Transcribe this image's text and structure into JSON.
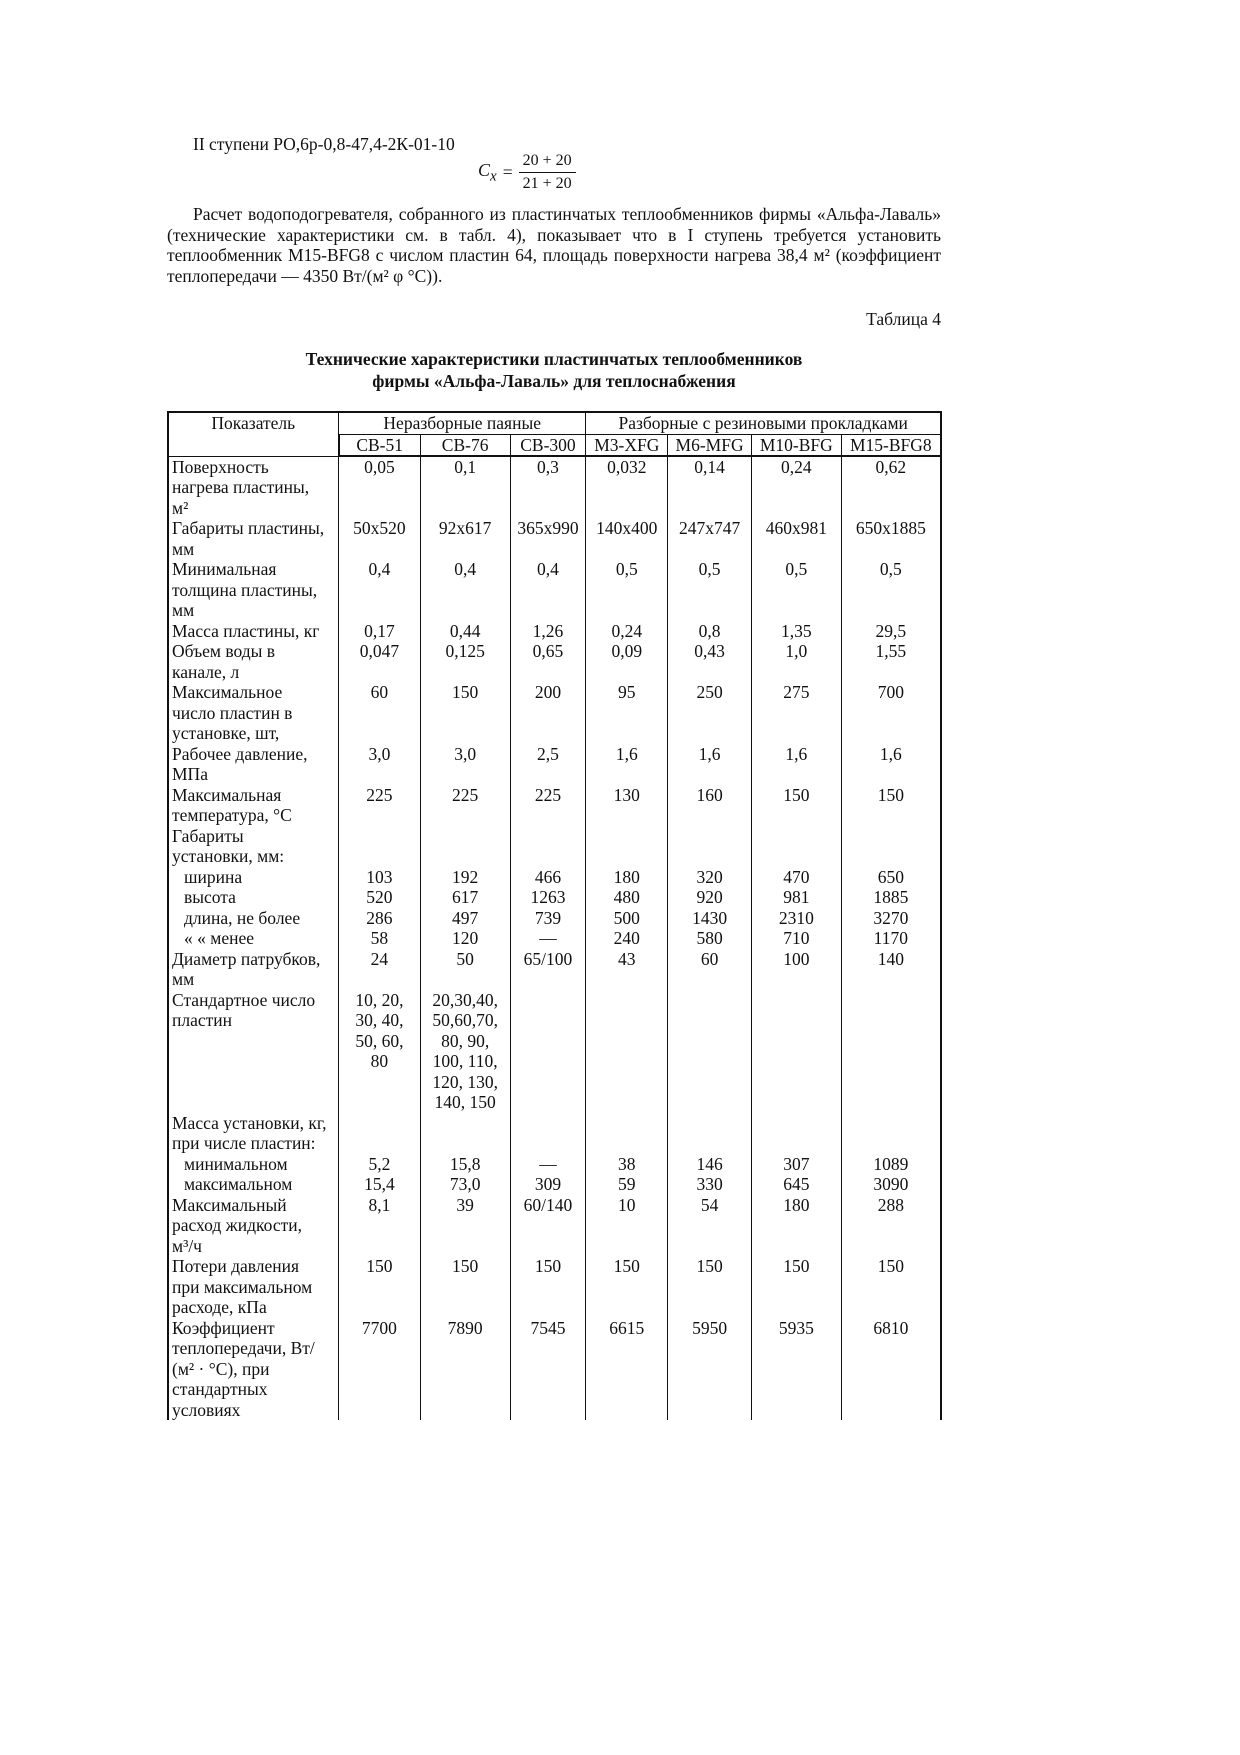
{
  "text": {
    "line1": "II ступени РО,6р-0,8-47,4-2К-01-10",
    "formula": {
      "lhs": "C",
      "lhs_sub": "x",
      "eq": "=",
      "numerator": "20 + 20",
      "denominator": "21 + 20"
    },
    "paragraph": "Расчет водоподогревателя, собранного из пластинчатых теплообменников фирмы «Альфа-Лаваль» (технические характеристики см. в табл. 4), показывает что в I ступень требуется установить теплообменник М15-BFG8 с числом пластин 64, площадь поверхности нагрева 38,4 м² (коэффициент теплопередачи — 4350 Вт/(м² φ °С)).",
    "table_number": "Таблица 4",
    "table_title_1": "Технические характеристики пластинчатых теплообменников",
    "table_title_2": "фирмы «Альфа-Лаваль» для теплоснабжения"
  },
  "table": {
    "header_indicator": "Показатель",
    "group1": "Неразборные паяные",
    "group2": "Разборные с резиновыми прокладками",
    "columns": [
      "CB-51",
      "CB-76",
      "CB-300",
      "M3-XFG",
      "M6-MFG",
      "M10-BFG",
      "M15-BFG8"
    ],
    "rows": [
      {
        "label": "Поверхность\nнагрева пластины,\nм²",
        "values": [
          "0,05",
          "0,1",
          "0,3",
          "0,032",
          "0,14",
          "0,24",
          "0,62"
        ]
      },
      {
        "label": "Габариты пластины,\nмм",
        "values": [
          "50x520",
          "92x617",
          "365x990",
          "140x400",
          "247x747",
          "460x981",
          "650x1885"
        ]
      },
      {
        "label": "Минимальная\nтолщина пластины,\nмм",
        "values": [
          "0,4",
          "0,4",
          "0,4",
          "0,5",
          "0,5",
          "0,5",
          "0,5"
        ]
      },
      {
        "label": "Масса пластины, кг",
        "values": [
          "0,17",
          "0,44",
          "1,26",
          "0,24",
          "0,8",
          "1,35",
          "29,5"
        ]
      },
      {
        "label": "Объем воды в\nканале, л",
        "values": [
          "0,047",
          "0,125",
          "0,65",
          "0,09",
          "0,43",
          "1,0",
          "1,55"
        ]
      },
      {
        "label": "Максимальное\nчисло пластин в\nустановке, шт,",
        "values": [
          "60",
          "150",
          "200",
          "95",
          "250",
          "275",
          "700"
        ]
      },
      {
        "label": "Рабочее давление,\nМПа",
        "values": [
          "3,0",
          "3,0",
          "2,5",
          "1,6",
          "1,6",
          "1,6",
          "1,6"
        ]
      },
      {
        "label": "Максимальная\nтемпература, °С",
        "values": [
          "225",
          "225",
          "225",
          "130",
          "160",
          "150",
          "150"
        ]
      },
      {
        "label": "Габариты\nустановки, мм:",
        "values": [
          "",
          "",
          "",
          "",
          "",
          "",
          ""
        ]
      },
      {
        "label": "ширина",
        "sub": true,
        "values": [
          "103",
          "192",
          "466",
          "180",
          "320",
          "470",
          "650"
        ]
      },
      {
        "label": "высота",
        "sub": true,
        "values": [
          "520",
          "617",
          "1263",
          "480",
          "920",
          "981",
          "1885"
        ]
      },
      {
        "label": "длина, не более",
        "sub": true,
        "values": [
          "286",
          "497",
          "739",
          "500",
          "1430",
          "2310",
          "3270"
        ]
      },
      {
        "label": " «        «  менее",
        "sub": true,
        "values": [
          "58",
          "120",
          "—",
          "240",
          "580",
          "710",
          "1170"
        ]
      },
      {
        "label": "Диаметр патрубков,\nмм",
        "values": [
          "24",
          "50",
          "65/100",
          "43",
          "60",
          "100",
          "140"
        ]
      },
      {
        "label": "Стандартное число\nпластин",
        "values": [
          "10, 20,\n30, 40,\n50, 60,\n80",
          "20,30,40,\n50,60,70,\n80, 90,\n100, 110,\n120, 130,\n140, 150",
          "",
          "",
          "",
          "",
          ""
        ]
      },
      {
        "label": "Масса установки, кг,\nпри числе пластин:",
        "values": [
          "",
          "",
          "",
          "",
          "",
          "",
          ""
        ]
      },
      {
        "label": "минимальном",
        "sub": true,
        "values": [
          "5,2",
          "15,8",
          "—",
          "38",
          "146",
          "307",
          "1089"
        ]
      },
      {
        "label": "максимальном",
        "sub": true,
        "values": [
          "15,4",
          "73,0",
          "309",
          "59",
          "330",
          "645",
          "3090"
        ]
      },
      {
        "label": "Максимальный\nрасход жидкости,\nм³/ч",
        "values": [
          "8,1",
          "39",
          "60/140",
          "10",
          "54",
          "180",
          "288"
        ]
      },
      {
        "label": "Потери давления\nпри максимальном\nрасходе, кПа",
        "values": [
          "150",
          "150",
          "150",
          "150",
          "150",
          "150",
          "150"
        ]
      },
      {
        "label": "Коэффициент\nтеплопередачи, Вт/\n(м² · °С), при\nстандартных\nусловиях",
        "values": [
          "7700",
          "7890",
          "7545",
          "6615",
          "5950",
          "5935",
          "6810"
        ]
      }
    ]
  }
}
